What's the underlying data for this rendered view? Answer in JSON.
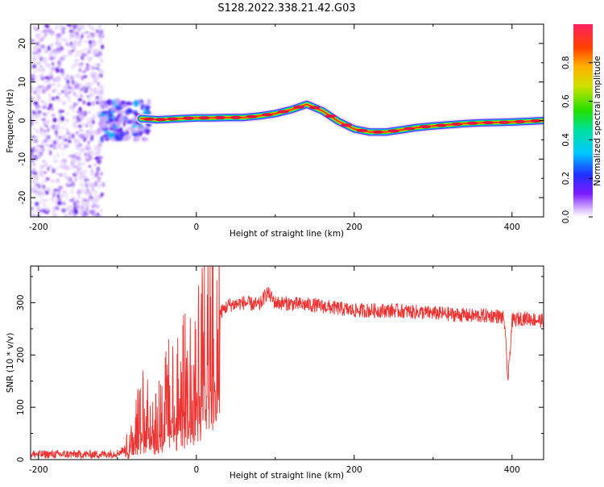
{
  "title": "S128.2022.338.21.42.G03",
  "chart_data": [
    {
      "type": "heatmap",
      "xlabel": "Height of straight line (km)",
      "ylabel": "Frequency (Hz)",
      "xlim": [
        -210,
        440
      ],
      "ylim": [
        -25,
        25
      ],
      "xticks": [
        -200,
        0,
        200,
        400
      ],
      "xtick_labels": [
        "-200",
        "0",
        "200",
        "400"
      ],
      "yticks": [
        -20,
        -10,
        0,
        10,
        20
      ],
      "ytick_labels": [
        "-20",
        "-10",
        "0",
        "10",
        "20"
      ],
      "ridge": {
        "x": [
          -70,
          -50,
          -40,
          -20,
          0,
          20,
          40,
          60,
          80,
          100,
          120,
          140,
          160,
          180,
          200,
          220,
          240,
          260,
          280,
          300,
          320,
          340,
          360,
          380,
          400,
          420,
          440
        ],
        "y": [
          0.5,
          0.2,
          0.3,
          0.5,
          0.7,
          0.7,
          0.8,
          0.8,
          1.2,
          1.8,
          2.8,
          4.2,
          2.5,
          -0.2,
          -2.2,
          -3.0,
          -3.0,
          -2.4,
          -1.8,
          -1.4,
          -1.1,
          -0.8,
          -0.6,
          -0.5,
          -0.4,
          -0.2,
          0.0
        ]
      },
      "colorbar": {
        "label": "Normalized spectral amplitude",
        "range": [
          0.0,
          1.0
        ],
        "ticks": [
          0.0,
          0.2,
          0.4,
          0.6,
          0.8
        ],
        "tick_labels": [
          "0.0",
          "0.2",
          "0.4",
          "0.6",
          "0.8"
        ]
      },
      "grid": false
    },
    {
      "type": "line",
      "xlabel": "Height of straight line (km)",
      "ylabel": "SNR (10 * v/v)",
      "xlim": [
        -210,
        440
      ],
      "ylim": [
        0,
        370
      ],
      "xticks": [
        -200,
        0,
        200,
        400
      ],
      "xtick_labels": [
        "-200",
        "0",
        "200",
        "400"
      ],
      "yticks": [
        0,
        100,
        200,
        300
      ],
      "ytick_labels": [
        "0",
        "100",
        "200",
        "300"
      ],
      "series": [
        {
          "color": "#ee3333",
          "x": [
            -210,
            -180,
            -150,
            -120,
            -100,
            -90,
            -80,
            -70,
            -60,
            -50,
            -40,
            -30,
            -20,
            -10,
            0,
            10,
            20,
            30,
            40,
            60,
            80,
            90,
            100,
            150,
            200,
            250,
            300,
            350,
            380,
            390,
            395,
            400,
            410,
            420,
            440
          ],
          "y": [
            10,
            10,
            10,
            10,
            12,
            20,
            50,
            90,
            110,
            80,
            130,
            140,
            150,
            180,
            190,
            240,
            260,
            280,
            295,
            300,
            295,
            320,
            300,
            295,
            285,
            285,
            280,
            275,
            275,
            270,
            150,
            265,
            270,
            270,
            265
          ]
        }
      ],
      "grid": false
    }
  ]
}
